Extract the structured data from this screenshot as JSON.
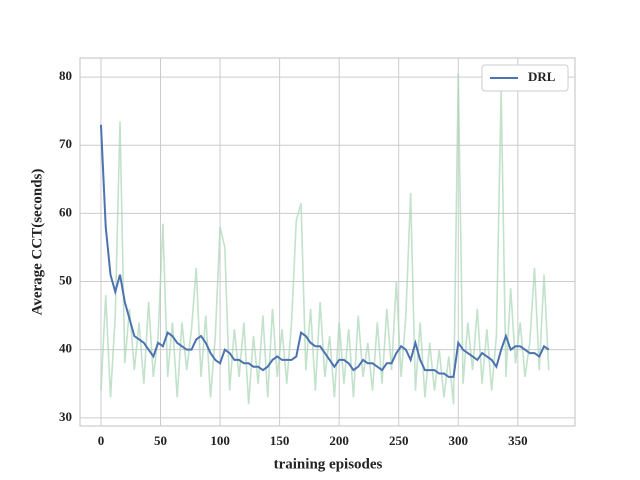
{
  "chart_data": {
    "type": "line",
    "xlabel": "training episodes",
    "ylabel": "Average CCT(seconds)",
    "x": [
      0,
      4,
      8,
      12,
      16,
      20,
      24,
      28,
      32,
      36,
      40,
      44,
      48,
      52,
      56,
      60,
      64,
      68,
      72,
      76,
      80,
      84,
      88,
      92,
      96,
      100,
      104,
      108,
      112,
      116,
      120,
      124,
      128,
      132,
      136,
      140,
      144,
      148,
      152,
      156,
      160,
      164,
      168,
      172,
      176,
      180,
      184,
      188,
      192,
      196,
      200,
      204,
      208,
      212,
      216,
      220,
      224,
      228,
      232,
      236,
      240,
      244,
      248,
      252,
      256,
      260,
      264,
      268,
      272,
      276,
      280,
      284,
      288,
      292,
      296,
      300,
      304,
      308,
      312,
      316,
      320,
      324,
      328,
      332,
      336,
      340,
      344,
      348,
      352,
      356,
      360,
      364,
      368,
      372,
      376
    ],
    "series": [
      {
        "color": "#a8d5b5",
        "values": [
          34,
          48,
          33,
          45,
          73.5,
          38,
          46,
          37,
          44,
          35,
          47,
          36,
          42,
          58.5,
          36,
          44,
          33,
          44,
          37,
          43,
          52,
          36,
          45,
          33,
          42,
          58,
          55,
          34,
          43,
          36,
          44,
          32,
          42,
          35,
          45,
          33,
          46,
          36,
          43,
          35,
          44,
          59,
          61.5,
          37,
          46,
          34,
          47,
          36,
          42,
          33,
          44,
          35,
          43,
          33,
          45,
          36,
          41,
          34,
          44,
          35,
          46,
          37,
          50,
          36,
          45,
          63,
          34,
          44,
          33,
          41,
          34,
          40,
          33,
          39,
          32,
          80.5,
          35,
          44,
          37,
          46,
          35,
          43,
          34,
          42,
          78,
          36,
          49,
          38,
          44,
          36,
          41,
          52,
          37,
          51,
          37
        ]
      },
      {
        "name": "DRL",
        "color": "#4c72b0",
        "values": [
          73,
          58,
          51,
          48.5,
          51,
          47,
          44.5,
          42,
          41.5,
          41,
          40,
          39,
          41,
          40.5,
          42.5,
          42,
          41,
          40.5,
          40,
          40,
          41.5,
          42,
          41,
          39.5,
          38.5,
          38,
          40,
          39.5,
          38.5,
          38.5,
          38,
          38,
          37.5,
          37.5,
          37,
          37.5,
          38.5,
          39,
          38.5,
          38.5,
          38.5,
          39,
          42.5,
          42,
          41,
          40.5,
          40.5,
          39.5,
          38.5,
          37.5,
          38.5,
          38.5,
          38,
          37,
          37.5,
          38.5,
          38,
          38,
          37.5,
          37,
          38,
          38,
          39.5,
          40.5,
          40,
          38.5,
          41,
          38.5,
          37,
          37,
          37,
          36.5,
          36.5,
          36,
          36,
          41,
          40,
          39.5,
          39,
          38.5,
          39.5,
          39,
          38.5,
          37.5,
          40,
          42,
          40,
          40.5,
          40.5,
          40,
          39.5,
          39.5,
          39,
          40.5,
          40
        ]
      }
    ],
    "xlim": [
      -17.6,
      398
    ],
    "ylim": [
      28.8,
      82.8
    ],
    "xticks": [
      0,
      50,
      100,
      150,
      200,
      250,
      300,
      350
    ],
    "yticks": [
      30,
      40,
      50,
      60,
      70,
      80
    ],
    "grid": true,
    "legend": "upper right"
  }
}
